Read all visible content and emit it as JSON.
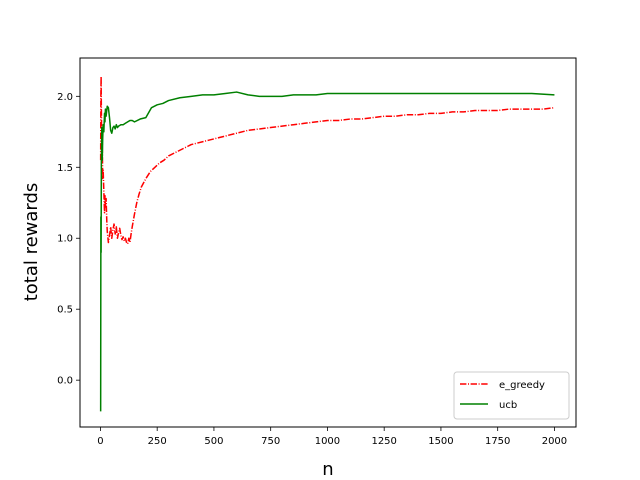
{
  "chart_data": {
    "type": "line",
    "title": "",
    "xlabel": "n",
    "ylabel": "total rewards",
    "xlim": [
      -90,
      2095
    ],
    "ylim": [
      -0.33,
      2.27
    ],
    "xticks": [
      0,
      250,
      500,
      750,
      1000,
      1250,
      1500,
      1750,
      2000
    ],
    "yticks": [
      0.0,
      0.5,
      1.0,
      1.5,
      2.0
    ],
    "xtick_labels": [
      "0",
      "250",
      "500",
      "750",
      "1000",
      "1250",
      "1500",
      "1750",
      "2000"
    ],
    "ytick_labels": [
      "0.0",
      "0.5",
      "1.0",
      "1.5",
      "2.0"
    ],
    "grid": false,
    "legend": {
      "placement": "lower-right"
    },
    "series": [
      {
        "name": "e_greedy",
        "color": "#ff0000",
        "style": "dashdot",
        "x": [
          1,
          2,
          3,
          4,
          5,
          6,
          8,
          10,
          12,
          15,
          18,
          20,
          22,
          25,
          28,
          30,
          35,
          40,
          45,
          50,
          55,
          60,
          65,
          70,
          75,
          80,
          85,
          90,
          95,
          100,
          105,
          110,
          115,
          120,
          125,
          130,
          135,
          140,
          150,
          160,
          170,
          180,
          190,
          200,
          220,
          240,
          260,
          280,
          300,
          325,
          350,
          375,
          400,
          425,
          450,
          475,
          500,
          550,
          600,
          650,
          700,
          750,
          800,
          850,
          900,
          950,
          1000,
          1050,
          1100,
          1150,
          1200,
          1250,
          1300,
          1350,
          1400,
          1450,
          1500,
          1550,
          1600,
          1650,
          1700,
          1750,
          1800,
          1850,
          1900,
          1950,
          2000
        ],
        "y": [
          1.55,
          2.02,
          2.14,
          1.92,
          1.78,
          1.55,
          1.68,
          1.42,
          1.48,
          1.33,
          1.18,
          1.3,
          1.22,
          1.28,
          1.12,
          1.05,
          0.97,
          1.02,
          1.08,
          1.0,
          1.06,
          1.1,
          1.03,
          1.08,
          1.0,
          1.04,
          1.07,
          1.02,
          0.99,
          1.01,
          0.98,
          1.0,
          0.97,
          0.96,
          1.0,
          0.97,
          1.03,
          1.08,
          1.17,
          1.25,
          1.31,
          1.36,
          1.39,
          1.42,
          1.47,
          1.5,
          1.53,
          1.55,
          1.58,
          1.6,
          1.62,
          1.64,
          1.66,
          1.67,
          1.68,
          1.69,
          1.7,
          1.72,
          1.74,
          1.76,
          1.77,
          1.78,
          1.79,
          1.8,
          1.81,
          1.82,
          1.83,
          1.83,
          1.84,
          1.84,
          1.85,
          1.86,
          1.86,
          1.87,
          1.87,
          1.88,
          1.88,
          1.89,
          1.89,
          1.9,
          1.9,
          1.9,
          1.91,
          1.91,
          1.91,
          1.91,
          1.92
        ]
      },
      {
        "name": "ucb",
        "color": "#008000",
        "style": "solid",
        "x": [
          1,
          2,
          3,
          4,
          5,
          6,
          7,
          8,
          10,
          12,
          15,
          18,
          20,
          22,
          25,
          30,
          35,
          40,
          45,
          50,
          55,
          60,
          65,
          70,
          75,
          80,
          90,
          100,
          110,
          120,
          130,
          140,
          150,
          175,
          200,
          225,
          250,
          275,
          300,
          350,
          400,
          450,
          500,
          550,
          600,
          650,
          700,
          750,
          800,
          850,
          900,
          950,
          1000,
          1100,
          1200,
          1300,
          1400,
          1500,
          1600,
          1700,
          1800,
          1900,
          2000
        ],
        "y": [
          -0.22,
          1.15,
          0.9,
          1.52,
          1.65,
          1.78,
          1.72,
          1.55,
          1.7,
          1.8,
          1.75,
          1.88,
          1.82,
          1.91,
          1.86,
          1.93,
          1.92,
          1.85,
          1.76,
          1.74,
          1.78,
          1.79,
          1.77,
          1.8,
          1.78,
          1.79,
          1.8,
          1.8,
          1.81,
          1.82,
          1.83,
          1.83,
          1.82,
          1.84,
          1.85,
          1.92,
          1.94,
          1.95,
          1.97,
          1.99,
          2.0,
          2.01,
          2.01,
          2.02,
          2.03,
          2.01,
          2.0,
          2.0,
          2.0,
          2.01,
          2.01,
          2.01,
          2.02,
          2.02,
          2.02,
          2.02,
          2.02,
          2.02,
          2.02,
          2.02,
          2.02,
          2.02,
          2.01
        ]
      }
    ]
  }
}
